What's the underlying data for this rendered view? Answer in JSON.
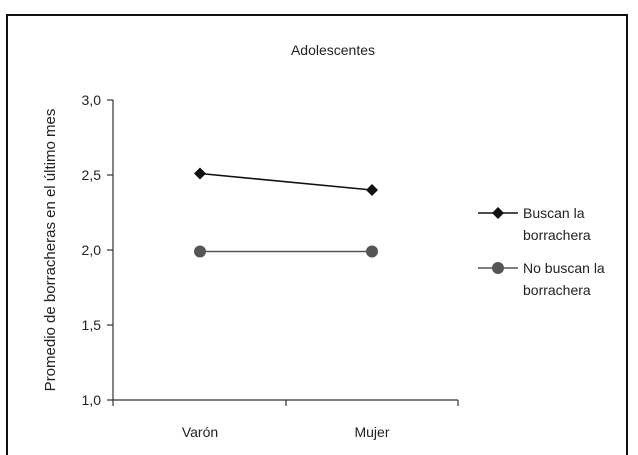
{
  "chart_data": {
    "type": "line",
    "title": "Adolescentes",
    "ylabel": "Promedio de borracheras en el último mes",
    "xlabel": "",
    "categories": [
      "Varón",
      "Mujer"
    ],
    "ylim": [
      1.0,
      3.0
    ],
    "yticks": [
      "1,0",
      "1,5",
      "2,0",
      "2,5",
      "3,0"
    ],
    "ytick_values": [
      1.0,
      1.5,
      2.0,
      2.5,
      3.0
    ],
    "grid": false,
    "legend_position": "right",
    "series": [
      {
        "name": "Buscan la borrachera",
        "legend_lines": [
          "Buscan la",
          "borrachera"
        ],
        "marker": "diamond",
        "color": "#111111",
        "values": [
          2.51,
          2.4
        ]
      },
      {
        "name": "No buscan la borrachera",
        "legend_lines": [
          "No buscan la",
          "borrachera"
        ],
        "marker": "circle",
        "color": "#555555",
        "values": [
          1.99,
          1.99
        ]
      }
    ]
  }
}
